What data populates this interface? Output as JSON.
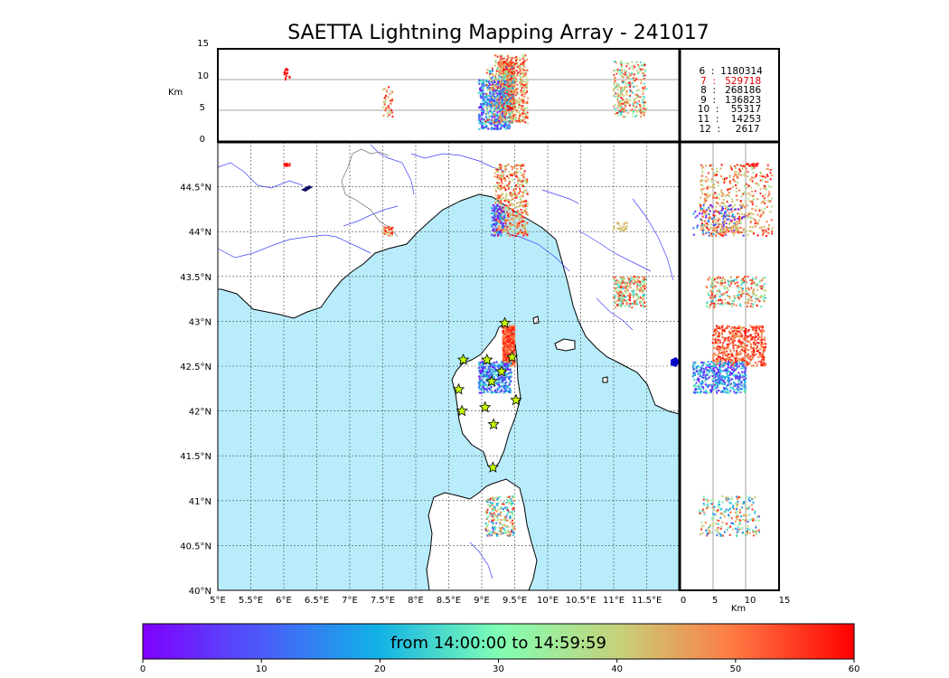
{
  "title": "SAETTA Lightning Mapping Array - 241017",
  "altitude_panel": {
    "axis_label": "Km",
    "ticks": [
      "15",
      "10",
      "5",
      "0"
    ]
  },
  "map": {
    "lon_ticks": [
      "5°E",
      "5.5°E",
      "6°E",
      "6.5°E",
      "7°E",
      "7.5°E",
      "8°E",
      "8.5°E",
      "9°E",
      "9.5°E",
      "10°E",
      "10.5°E",
      "11°E",
      "11.5°E"
    ],
    "lat_ticks": [
      "44.5°N",
      "44°N",
      "43.5°N",
      "43°N",
      "42.5°N",
      "42°N",
      "41.5°N",
      "41°N",
      "40.5°N",
      "40°N"
    ],
    "sea_color": "#b8ecfb",
    "land_color": "#ffffff",
    "lon_range": [
      5,
      12
    ],
    "lat_range": [
      40,
      45
    ]
  },
  "side_panel": {
    "axis_label": "Km",
    "ticks": [
      "0",
      "5",
      "10",
      "15"
    ]
  },
  "station_counts": [
    {
      "label": " 6  :  1180314",
      "color": "#000000"
    },
    {
      "label": " 7  :   529718",
      "color": "#e00000"
    },
    {
      "label": " 8  :   268186",
      "color": "#000000"
    },
    {
      "label": " 9  :   136823",
      "color": "#000000"
    },
    {
      "label": "10  :    55317",
      "color": "#000000"
    },
    {
      "label": "11  :    14253",
      "color": "#000000"
    },
    {
      "label": "12  :     2617",
      "color": "#000000"
    }
  ],
  "colorbar": {
    "label": "from 14:00:00 to 14:59:59",
    "ticks": [
      "0",
      "10",
      "20",
      "30",
      "40",
      "50",
      "60"
    ],
    "range": [
      0,
      60
    ],
    "colormap": "rainbow"
  },
  "stations": [
    [
      8.72,
      42.57
    ],
    [
      9.08,
      42.57
    ],
    [
      9.35,
      42.98
    ],
    [
      9.46,
      42.6
    ],
    [
      9.3,
      42.44
    ],
    [
      9.15,
      42.33
    ],
    [
      8.65,
      42.24
    ],
    [
      9.05,
      42.04
    ],
    [
      8.7,
      42.0
    ],
    [
      9.52,
      42.12
    ],
    [
      9.18,
      41.85
    ],
    [
      9.17,
      41.37
    ]
  ],
  "lightning_clusters": [
    {
      "lon": [
        9.32,
        9.5
      ],
      "lat": [
        42.5,
        42.95
      ],
      "alt": [
        5,
        13
      ],
      "t": [
        45,
        60
      ],
      "n": 520
    },
    {
      "lon": [
        8.95,
        9.45
      ],
      "lat": [
        42.2,
        42.55
      ],
      "alt": [
        2,
        10
      ],
      "t": [
        0,
        30
      ],
      "n": 450
    },
    {
      "lon": [
        9.2,
        9.7
      ],
      "lat": [
        43.95,
        44.75
      ],
      "alt": [
        3,
        14
      ],
      "t": [
        35,
        60
      ],
      "n": 480
    },
    {
      "lon": [
        9.15,
        9.35
      ],
      "lat": [
        43.95,
        44.3
      ],
      "alt": [
        2,
        10
      ],
      "t": [
        0,
        20
      ],
      "n": 90
    },
    {
      "lon": [
        11.0,
        11.5
      ],
      "lat": [
        43.15,
        43.5
      ],
      "alt": [
        4,
        13
      ],
      "t": [
        20,
        60
      ],
      "n": 260
    },
    {
      "lon": [
        9.05,
        9.5
      ],
      "lat": [
        40.6,
        41.05
      ],
      "alt": [
        3,
        12
      ],
      "t": [
        10,
        60
      ],
      "n": 230
    },
    {
      "lon": [
        7.5,
        7.65
      ],
      "lat": [
        43.95,
        44.05
      ],
      "alt": [
        4,
        9
      ],
      "t": [
        35,
        60
      ],
      "n": 40
    },
    {
      "lon": [
        6.0,
        6.1
      ],
      "lat": [
        44.72,
        44.76
      ],
      "alt": [
        10,
        12
      ],
      "t": [
        58,
        60
      ],
      "n": 15
    },
    {
      "lon": [
        11.0,
        11.2
      ],
      "lat": [
        44.0,
        44.1
      ],
      "alt": [
        5,
        9
      ],
      "t": [
        40,
        45
      ],
      "n": 30
    }
  ]
}
